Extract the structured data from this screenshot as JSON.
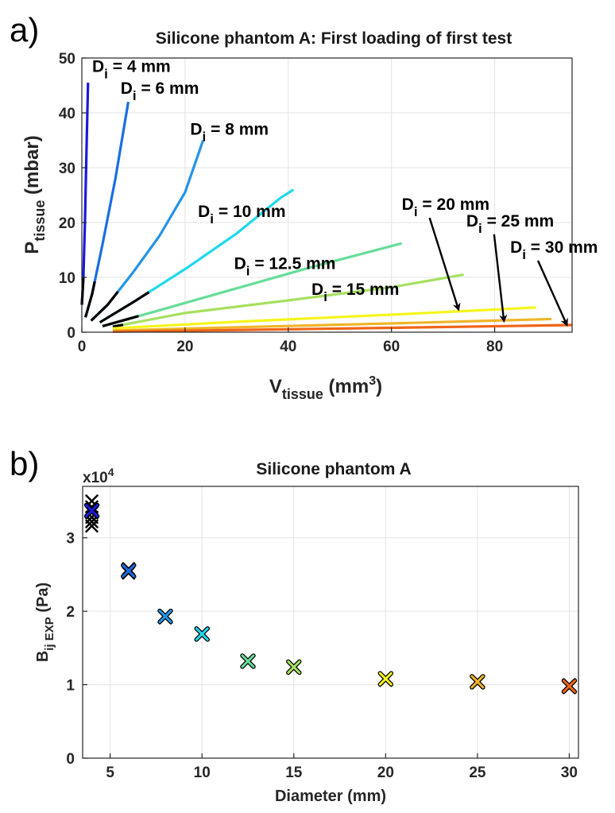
{
  "panel_labels": {
    "a": "a)",
    "b": "b)"
  },
  "chart_data": [
    {
      "type": "line",
      "title": "Silicone phantom A: First loading of first test",
      "xlabel": {
        "main": "V",
        "sub": "tissue",
        "unit_open": " (mm",
        "unit_sup": "3",
        "unit_close": ")"
      },
      "ylabel": {
        "main": "P",
        "sub": "tissue",
        "unit": " (mbar)"
      },
      "xlim": [
        0,
        95
      ],
      "ylim": [
        0,
        50
      ],
      "xticks": [
        0,
        20,
        40,
        60,
        80
      ],
      "yticks": [
        0,
        10,
        20,
        30,
        40,
        50
      ],
      "grid": true,
      "series": [
        {
          "label": "D",
          "sub": "i",
          "label_rest": " = 4 mm",
          "color": "#1a1adb",
          "x": [
            0.0,
            0.3,
            0.6,
            0.9,
            1.2
          ],
          "y": [
            5.0,
            10.0,
            20.0,
            33.0,
            45.5
          ],
          "black_to": 0.3
        },
        {
          "label": "D",
          "sub": "i",
          "label_rest": " = 6 mm",
          "color": "#1a6fe0",
          "x": [
            0.7,
            2.0,
            4.0,
            6.5,
            9.0
          ],
          "y": [
            2.7,
            7.0,
            16.0,
            28.0,
            42.0
          ],
          "black_to": 2.5
        },
        {
          "label": "D",
          "sub": "i",
          "label_rest": " = 8 mm",
          "color": "#2594e6",
          "x": [
            1.8,
            5.0,
            10.0,
            15.0,
            20.0,
            23.5
          ],
          "y": [
            2.1,
            5.0,
            11.0,
            17.5,
            25.5,
            35.0
          ],
          "black_to": 7.0
        },
        {
          "label": "D",
          "sub": "i",
          "label_rest": " = 10 mm",
          "color": "#1ed9ee",
          "x": [
            3.5,
            10.0,
            20.0,
            30.0,
            38.5,
            41.0
          ],
          "y": [
            1.8,
            5.5,
            11.5,
            18.0,
            24.5,
            26.0
          ],
          "black_to": 13.0
        },
        {
          "label": "D",
          "sub": "i",
          "label_rest": " = 12.5 mm",
          "color": "#66dd99",
          "x": [
            4.0,
            15.0,
            30.0,
            45.0,
            62.0
          ],
          "y": [
            1.1,
            4.0,
            8.0,
            12.0,
            16.2
          ],
          "black_to": 11.0
        },
        {
          "label": "D",
          "sub": "i",
          "label_rest": " = 15 mm",
          "color": "#a6e060",
          "x": [
            6.0,
            20.0,
            40.0,
            60.0,
            74.0
          ],
          "y": [
            1.0,
            3.5,
            5.8,
            8.2,
            10.5
          ],
          "black_to": 8.0
        },
        {
          "label": "D",
          "sub": "i",
          "label_rest": " = 20 mm",
          "color": "#f5f51a",
          "x": [
            6.0,
            30.0,
            60.0,
            88.0
          ],
          "y": [
            0.7,
            1.9,
            3.2,
            4.5
          ],
          "black_to": 0
        },
        {
          "label": "D",
          "sub": "i",
          "label_rest": " = 25 mm",
          "color": "#f0b428",
          "x": [
            6.0,
            30.0,
            60.0,
            91.0
          ],
          "y": [
            0.3,
            0.9,
            1.6,
            2.4
          ],
          "black_to": 0
        },
        {
          "label": "D",
          "sub": "i",
          "label_rest": " = 30 mm",
          "color": "#f06418",
          "x": [
            6.0,
            30.0,
            60.0,
            95.0
          ],
          "y": [
            0.1,
            0.4,
            0.8,
            1.3
          ],
          "black_to": 0
        }
      ],
      "annotations": [
        {
          "series": 0,
          "ax": 2.0,
          "ay": 47.5
        },
        {
          "series": 1,
          "ax": 7.5,
          "ay": 43.5
        },
        {
          "series": 2,
          "ax": 21.0,
          "ay": 36.0
        },
        {
          "series": 3,
          "ax": 22.5,
          "ay": 21.0
        },
        {
          "series": 4,
          "ax": 29.5,
          "ay": 11.5
        },
        {
          "series": 5,
          "ax": 44.5,
          "ay": 6.8
        },
        {
          "series": 6,
          "ax": 62.0,
          "ay": 22.3,
          "arrow_to_x": 73.0,
          "arrow_to_y": 4.1
        },
        {
          "series": 7,
          "ax": 74.5,
          "ay": 19.3,
          "arrow_to_x": 81.8,
          "arrow_to_y": 2.0
        },
        {
          "series": 8,
          "ax": 83.0,
          "ay": 14.5,
          "arrow_to_x": 94.0,
          "arrow_to_y": 1.3
        }
      ]
    },
    {
      "type": "scatter",
      "title": "Silicone phantom A",
      "xlabel": "Diameter (mm)",
      "ylabel": {
        "main": "B",
        "sub": "ij EXP",
        "unit": " (Pa)"
      },
      "exponent": {
        "base": "x10",
        "sup": "4"
      },
      "xlim": [
        3.5,
        30.5
      ],
      "ylim": [
        0,
        3.7
      ],
      "xticks": [
        5,
        10,
        15,
        20,
        25,
        30
      ],
      "yticks": [
        0,
        1,
        2,
        3
      ],
      "grid": true,
      "points": [
        {
          "x": 4,
          "y": 3.37,
          "color": "#1a1adb",
          "black_ys": [
            3.16,
            3.22,
            3.28,
            3.34,
            3.42,
            3.5
          ]
        },
        {
          "x": 6,
          "y": 2.55,
          "color": "#1a6fe0",
          "black_ys": [
            2.52,
            2.58
          ]
        },
        {
          "x": 8,
          "y": 1.93,
          "color": "#2594e6",
          "black_ys": [
            1.91
          ]
        },
        {
          "x": 10,
          "y": 1.69,
          "color": "#1ed9ee",
          "black_ys": []
        },
        {
          "x": 12.5,
          "y": 1.32,
          "color": "#66dd99",
          "black_ys": []
        },
        {
          "x": 15,
          "y": 1.24,
          "color": "#a6e060",
          "black_ys": []
        },
        {
          "x": 20,
          "y": 1.08,
          "color": "#f5f51a",
          "black_ys": [
            1.06
          ]
        },
        {
          "x": 25,
          "y": 1.04,
          "color": "#f0b428",
          "black_ys": [
            1.03
          ]
        },
        {
          "x": 30,
          "y": 0.98,
          "color": "#f06418",
          "black_ys": [
            0.96,
            1.0
          ]
        }
      ]
    }
  ]
}
